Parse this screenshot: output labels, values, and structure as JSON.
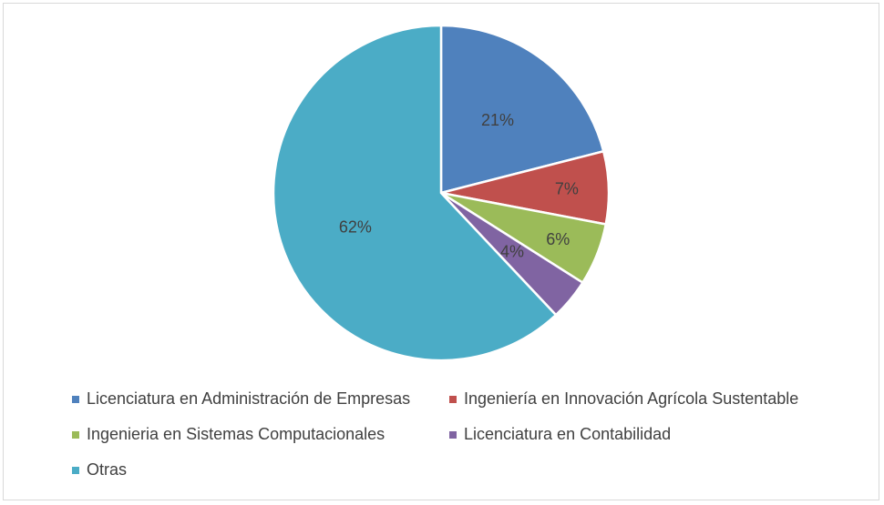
{
  "chart_data": {
    "type": "pie",
    "categories": [
      "Licenciatura en Administración de Empresas",
      "Ingeniería en Innovación Agrícola Sustentable",
      "Ingenieria en Sistemas Computacionales",
      "Licenciatura en Contabilidad",
      "Otras"
    ],
    "values": [
      21,
      7,
      6,
      4,
      62
    ],
    "data_labels": [
      "21%",
      "7%",
      "6%",
      "4%",
      "62%"
    ],
    "colors": [
      "#4f81bd",
      "#c0504d",
      "#9bbb59",
      "#8064a2",
      "#4bacc6"
    ],
    "legend_position": "bottom",
    "title": ""
  }
}
